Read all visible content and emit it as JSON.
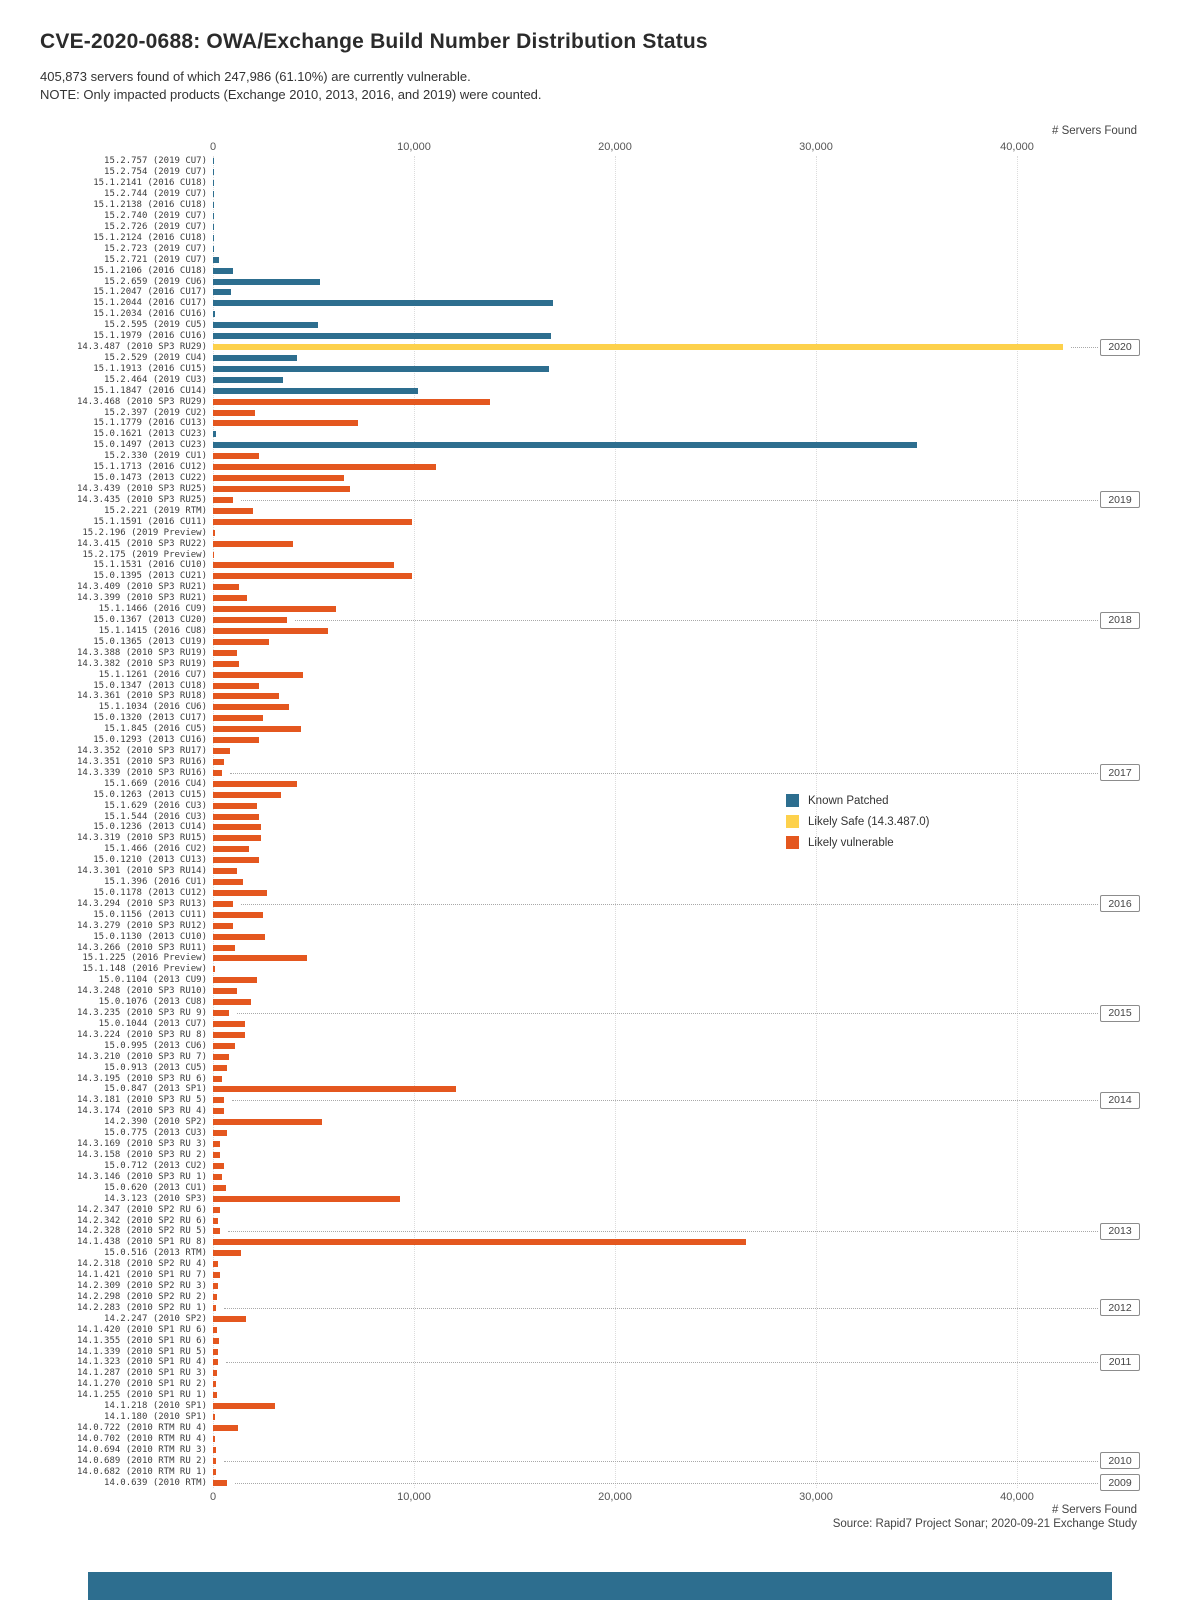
{
  "page": {
    "title": "CVE-2020-0688: OWA/Exchange Build Number Distribution Status",
    "subtitle_line1": "405,873 servers found of which 247,986 (61.10%) are currently vulnerable.",
    "subtitle_line2": "NOTE: Only impacted products (Exchange 2010, 2013, 2016, and 2019) were counted.",
    "source": "Source: Rapid7 Project Sonar; 2020-09-21 Exchange Study",
    "footer_color": "#2d6e8f"
  },
  "chart_data": {
    "type": "bar",
    "orientation": "horizontal",
    "xlabel": "# Servers Found",
    "xlim": [
      0,
      42500
    ],
    "xticks": [
      0,
      10000,
      20000,
      30000,
      40000
    ],
    "grid": true,
    "legend_position": "middle-right",
    "colors": {
      "P": "#2d6e8f",
      "S": "#fdd14c",
      "V": "#e4571f"
    },
    "legend": [
      {
        "label": "Known Patched",
        "code": "P"
      },
      {
        "label": "Likely Safe (14.3.487.0)",
        "code": "S"
      },
      {
        "label": "Likely vulnerable",
        "code": "V"
      }
    ],
    "rows": [
      [
        "15.2.757 (2019 CU7)",
        40,
        "P"
      ],
      [
        "15.2.754 (2019 CU7)",
        20,
        "P"
      ],
      [
        "15.1.2141 (2016 CU18)",
        30,
        "P"
      ],
      [
        "15.2.744 (2019 CU7)",
        15,
        "P"
      ],
      [
        "15.1.2138 (2016 CU18)",
        20,
        "P"
      ],
      [
        "15.2.740 (2019 CU7)",
        15,
        "P"
      ],
      [
        "15.2.726 (2019 CU7)",
        25,
        "P"
      ],
      [
        "15.1.2124 (2016 CU18)",
        30,
        "P"
      ],
      [
        "15.2.723 (2019 CU7)",
        15,
        "P"
      ],
      [
        "15.2.721 (2019 CU7)",
        320,
        "P"
      ],
      [
        "15.1.2106 (2016 CU18)",
        1000,
        "P"
      ],
      [
        "15.2.659 (2019 CU6)",
        5300,
        "P"
      ],
      [
        "15.1.2047 (2016 CU17)",
        900,
        "P"
      ],
      [
        "15.1.2044 (2016 CU17)",
        16900,
        "P"
      ],
      [
        "15.1.2034 (2016 CU16)",
        120,
        "P"
      ],
      [
        "15.2.595 (2019 CU5)",
        5200,
        "P"
      ],
      [
        "15.1.1979 (2016 CU16)",
        16800,
        "P"
      ],
      [
        "14.3.487 (2010 SP3 RU29)",
        42300,
        "S"
      ],
      [
        "15.2.529 (2019 CU4)",
        4200,
        "P"
      ],
      [
        "15.1.1913 (2016 CU15)",
        16700,
        "P"
      ],
      [
        "15.2.464 (2019 CU3)",
        3500,
        "P"
      ],
      [
        "15.1.1847 (2016 CU14)",
        10200,
        "P"
      ],
      [
        "14.3.468 (2010 SP3 RU29)",
        13800,
        "V"
      ],
      [
        "15.2.397 (2019 CU2)",
        2100,
        "V"
      ],
      [
        "15.1.1779 (2016 CU13)",
        7200,
        "V"
      ],
      [
        "15.0.1621 (2013 CU23)",
        150,
        "P"
      ],
      [
        "15.0.1497 (2013 CU23)",
        35000,
        "P"
      ],
      [
        "15.2.330 (2019 CU1)",
        2300,
        "V"
      ],
      [
        "15.1.1713 (2016 CU12)",
        11100,
        "V"
      ],
      [
        "15.0.1473 (2013 CU22)",
        6500,
        "V"
      ],
      [
        "14.3.439 (2010 SP3 RU25)",
        6800,
        "V"
      ],
      [
        "14.3.435 (2010 SP3 RU25)",
        1000,
        "V"
      ],
      [
        "15.2.221 (2019 RTM)",
        2000,
        "V"
      ],
      [
        "15.1.1591 (2016 CU11)",
        9900,
        "V"
      ],
      [
        "15.2.196 (2019 Preview)",
        80,
        "V"
      ],
      [
        "14.3.415 (2010 SP3 RU22)",
        4000,
        "V"
      ],
      [
        "15.2.175 (2019 Preview)",
        60,
        "V"
      ],
      [
        "15.1.1531 (2016 CU10)",
        9000,
        "V"
      ],
      [
        "15.0.1395 (2013 CU21)",
        9900,
        "V"
      ],
      [
        "14.3.409 (2010 SP3 RU21)",
        1300,
        "V"
      ],
      [
        "14.3.399 (2010 SP3 RU21)",
        1700,
        "V"
      ],
      [
        "15.1.1466 (2016 CU9)",
        6100,
        "V"
      ],
      [
        "15.0.1367 (2013 CU20)",
        3700,
        "V"
      ],
      [
        "15.1.1415 (2016 CU8)",
        5700,
        "V"
      ],
      [
        "15.0.1365 (2013 CU19)",
        2800,
        "V"
      ],
      [
        "14.3.388 (2010 SP3 RU19)",
        1200,
        "V"
      ],
      [
        "14.3.382 (2010 SP3 RU19)",
        1300,
        "V"
      ],
      [
        "15.1.1261 (2016 CU7)",
        4500,
        "V"
      ],
      [
        "15.0.1347 (2013 CU18)",
        2300,
        "V"
      ],
      [
        "14.3.361 (2010 SP3 RU18)",
        3300,
        "V"
      ],
      [
        "15.1.1034 (2016 CU6)",
        3800,
        "V"
      ],
      [
        "15.0.1320 (2013 CU17)",
        2500,
        "V"
      ],
      [
        "15.1.845 (2016 CU5)",
        4400,
        "V"
      ],
      [
        "15.0.1293 (2013 CU16)",
        2300,
        "V"
      ],
      [
        "14.3.352 (2010 SP3 RU17)",
        850,
        "V"
      ],
      [
        "14.3.351 (2010 SP3 RU16)",
        550,
        "V"
      ],
      [
        "14.3.339 (2010 SP3 RU16)",
        450,
        "V"
      ],
      [
        "15.1.669 (2016 CU4)",
        4200,
        "V"
      ],
      [
        "15.0.1263 (2013 CU15)",
        3400,
        "V"
      ],
      [
        "15.1.629 (2016 CU3)",
        2200,
        "V"
      ],
      [
        "15.1.544 (2016 CU3)",
        2300,
        "V"
      ],
      [
        "15.0.1236 (2013 CU14)",
        2400,
        "V"
      ],
      [
        "14.3.319 (2010 SP3 RU15)",
        2400,
        "V"
      ],
      [
        "15.1.466 (2016 CU2)",
        1800,
        "V"
      ],
      [
        "15.0.1210 (2013 CU13)",
        2300,
        "V"
      ],
      [
        "14.3.301 (2010 SP3 RU14)",
        1200,
        "V"
      ],
      [
        "15.1.396 (2016 CU1)",
        1500,
        "V"
      ],
      [
        "15.0.1178 (2013 CU12)",
        2700,
        "V"
      ],
      [
        "14.3.294 (2010 SP3 RU13)",
        1000,
        "V"
      ],
      [
        "15.0.1156 (2013 CU11)",
        2500,
        "V"
      ],
      [
        "14.3.279 (2010 SP3 RU12)",
        1000,
        "V"
      ],
      [
        "15.0.1130 (2013 CU10)",
        2600,
        "V"
      ],
      [
        "14.3.266 (2010 SP3 RU11)",
        1100,
        "V"
      ],
      [
        "15.1.225 (2016 Preview)",
        4700,
        "V"
      ],
      [
        "15.1.148 (2016 Preview)",
        100,
        "V"
      ],
      [
        "15.0.1104 (2013 CU9)",
        2200,
        "V"
      ],
      [
        "14.3.248 (2010 SP3 RU10)",
        1200,
        "V"
      ],
      [
        "15.0.1076 (2013 CU8)",
        1900,
        "V"
      ],
      [
        "14.3.235 (2010 SP3 RU 9)",
        800,
        "V"
      ],
      [
        "15.0.1044 (2013 CU7)",
        1600,
        "V"
      ],
      [
        "14.3.224 (2010 SP3 RU 8)",
        1600,
        "V"
      ],
      [
        "15.0.995 (2013 CU6)",
        1100,
        "V"
      ],
      [
        "14.3.210 (2010 SP3 RU 7)",
        800,
        "V"
      ],
      [
        "15.0.913 (2013 CU5)",
        700,
        "V"
      ],
      [
        "14.3.195 (2010 SP3 RU 6)",
        450,
        "V"
      ],
      [
        "15.0.847 (2013 SP1)",
        12100,
        "V"
      ],
      [
        "14.3.181 (2010 SP3 RU 5)",
        550,
        "V"
      ],
      [
        "14.3.174 (2010 SP3 RU 4)",
        550,
        "V"
      ],
      [
        "14.2.390 (2010 SP2)",
        5400,
        "V"
      ],
      [
        "15.0.775 (2013 CU3)",
        700,
        "V"
      ],
      [
        "14.3.169 (2010 SP3 RU 3)",
        350,
        "V"
      ],
      [
        "14.3.158 (2010 SP3 RU 2)",
        350,
        "V"
      ],
      [
        "15.0.712 (2013 CU2)",
        550,
        "V"
      ],
      [
        "14.3.146 (2010 SP3 RU 1)",
        450,
        "V"
      ],
      [
        "15.0.620 (2013 CU1)",
        650,
        "V"
      ],
      [
        "14.3.123 (2010 SP3)",
        9300,
        "V"
      ],
      [
        "14.2.347 (2010 SP2 RU 6)",
        350,
        "V"
      ],
      [
        "14.2.342 (2010 SP2 RU 6)",
        250,
        "V"
      ],
      [
        "14.2.328 (2010 SP2 RU 5)",
        350,
        "V"
      ],
      [
        "14.1.438 (2010 SP1 RU 8)",
        26500,
        "V"
      ],
      [
        "15.0.516 (2013 RTM)",
        1400,
        "V"
      ],
      [
        "14.2.318 (2010 SP2 RU 4)",
        250,
        "V"
      ],
      [
        "14.1.421 (2010 SP1 RU 7)",
        350,
        "V"
      ],
      [
        "14.2.309 (2010 SP2 RU 3)",
        250,
        "V"
      ],
      [
        "14.2.298 (2010 SP2 RU 2)",
        200,
        "V"
      ],
      [
        "14.2.283 (2010 SP2 RU 1)",
        150,
        "V"
      ],
      [
        "14.2.247 (2010 SP2)",
        1650,
        "V"
      ],
      [
        "14.1.420 (2010 SP1 RU 6)",
        200,
        "V"
      ],
      [
        "14.1.355 (2010 SP1 RU 6)",
        300,
        "V"
      ],
      [
        "14.1.339 (2010 SP1 RU 5)",
        250,
        "V"
      ],
      [
        "14.1.323 (2010 SP1 RU 4)",
        250,
        "V"
      ],
      [
        "14.1.287 (2010 SP1 RU 3)",
        200,
        "V"
      ],
      [
        "14.1.270 (2010 SP1 RU 2)",
        150,
        "V"
      ],
      [
        "14.1.255 (2010 SP1 RU 1)",
        200,
        "V"
      ],
      [
        "14.1.218 (2010 SP1)",
        3100,
        "V"
      ],
      [
        "14.1.180 (2010 SP1)",
        100,
        "V"
      ],
      [
        "14.0.722 (2010 RTM RU 4)",
        1250,
        "V"
      ],
      [
        "14.0.702 (2010 RTM RU 4)",
        80,
        "V"
      ],
      [
        "14.0.694 (2010 RTM RU 3)",
        150,
        "V"
      ],
      [
        "14.0.689 (2010 RTM RU 2)",
        150,
        "V"
      ],
      [
        "14.0.682 (2010 RTM RU 1)",
        150,
        "V"
      ],
      [
        "14.0.639 (2010 RTM)",
        700,
        "V"
      ]
    ],
    "year_markers": [
      {
        "year": "2020",
        "row_index": 17
      },
      {
        "year": "2019",
        "row_index": 31
      },
      {
        "year": "2018",
        "row_index": 42
      },
      {
        "year": "2017",
        "row_index": 56
      },
      {
        "year": "2016",
        "row_index": 68
      },
      {
        "year": "2015",
        "row_index": 78
      },
      {
        "year": "2014",
        "row_index": 86
      },
      {
        "year": "2013",
        "row_index": 98
      },
      {
        "year": "2012",
        "row_index": 105
      },
      {
        "year": "2011",
        "row_index": 110
      },
      {
        "year": "2010",
        "row_index": 119
      },
      {
        "year": "2009",
        "row_index": 121
      }
    ]
  }
}
